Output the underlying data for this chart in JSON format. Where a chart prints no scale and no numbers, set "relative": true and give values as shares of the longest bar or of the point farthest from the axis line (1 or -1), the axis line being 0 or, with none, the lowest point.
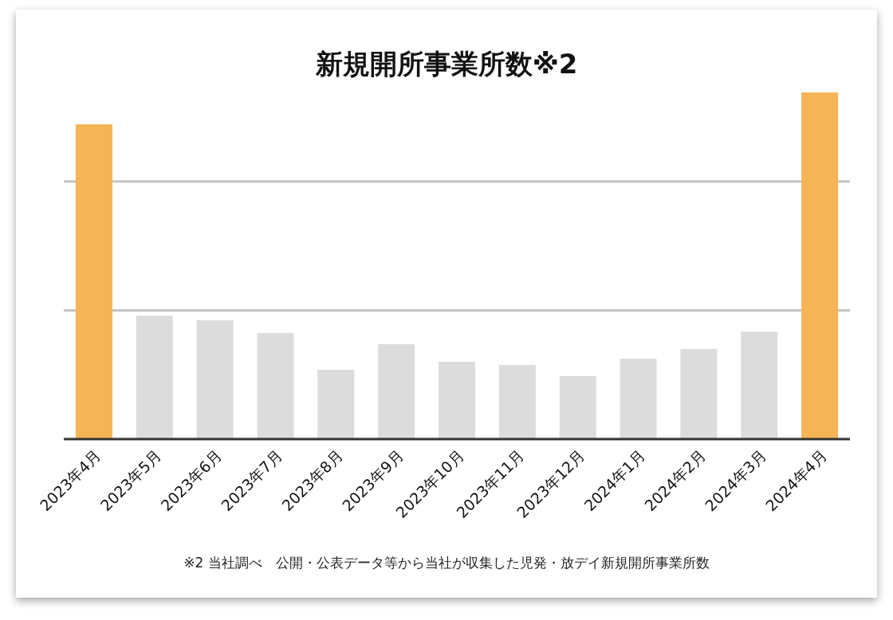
{
  "chart_data": {
    "type": "bar",
    "title": "新規開所事業所数※2",
    "relative": true,
    "ref_lines": [
      {
        "axis": "y",
        "value": 0.371,
        "color": "#c4c4c4"
      },
      {
        "axis": "y",
        "value": 0.743,
        "color": "#c4c4c4"
      }
    ],
    "categories": [
      "2023年4月",
      "2023年5月",
      "2023年6月",
      "2023年7月",
      "2023年8月",
      "2023年9月",
      "2023年10月",
      "2023年11月",
      "2023年12月",
      "2024年1月",
      "2024年2月",
      "2024年3月",
      "2024年4月"
    ],
    "values": [
      0.908,
      0.356,
      0.343,
      0.306,
      0.2,
      0.274,
      0.223,
      0.214,
      0.182,
      0.232,
      0.26,
      0.31,
      1
    ],
    "colors": [
      "#f5b455",
      "#dcdcdc",
      "#dcdcdc",
      "#dcdcdc",
      "#dcdcdc",
      "#dcdcdc",
      "#dcdcdc",
      "#dcdcdc",
      "#dcdcdc",
      "#dcdcdc",
      "#dcdcdc",
      "#dcdcdc",
      "#f5b455"
    ],
    "annotations": [
      "※2 当社調べ　公開・公表データ等から当社が収集した児発・放デイ新規開所事業所数"
    ]
  }
}
